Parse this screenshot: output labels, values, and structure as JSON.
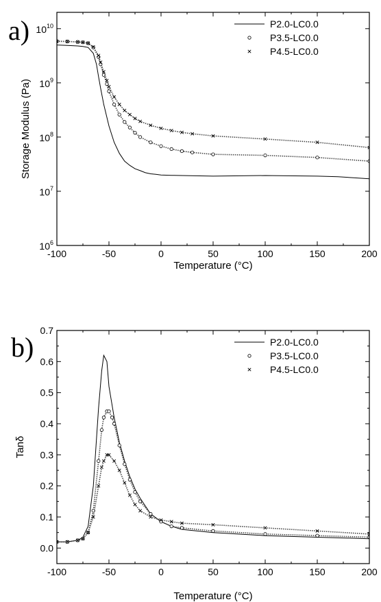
{
  "chart_data": [
    {
      "type": "line",
      "panel_label": "a)",
      "xlabel": "Temperature (°C)",
      "ylabel": "Storage Modulus (Pa)",
      "xlim": [
        -100,
        200
      ],
      "ylim": [
        1000000,
        20000000000
      ],
      "yscale": "log",
      "x_ticks": [
        -100,
        -50,
        0,
        50,
        100,
        150,
        200
      ],
      "x_tick_labels": [
        "-100",
        "-50",
        "0",
        "50",
        "100",
        "150",
        "200"
      ],
      "y_ticks": [
        {
          "value": 1000000,
          "base": "10",
          "exp": "6"
        },
        {
          "value": 10000000,
          "base": "10",
          "exp": "7"
        },
        {
          "value": 100000000,
          "base": "10",
          "exp": "8"
        },
        {
          "value": 1000000000,
          "base": "10",
          "exp": "9"
        },
        {
          "value": 10000000000,
          "base": "10",
          "exp": "10"
        }
      ],
      "legend_position": "top-right",
      "series": [
        {
          "name": "P2.0-LC0.0",
          "marker": "line",
          "x": [
            -100,
            -90,
            -80,
            -75,
            -70,
            -65,
            -62,
            -60,
            -58,
            -55,
            -52,
            -50,
            -45,
            -40,
            -35,
            -30,
            -25,
            -20,
            -15,
            -10,
            -5,
            0,
            10,
            20,
            50,
            100,
            150,
            170,
            200
          ],
          "y": [
            5000000000,
            4900000000,
            4800000000,
            4700000000,
            4500000000,
            3500000000,
            2200000000,
            1300000000,
            800000000,
            400000000,
            230000000,
            160000000,
            80000000,
            50000000,
            36000000,
            30000000,
            26000000,
            24000000,
            22000000,
            21000000,
            20500000,
            20000000,
            19700000,
            19500000,
            19000000,
            19500000,
            19000000,
            18500000,
            17000000
          ]
        },
        {
          "name": "P3.5-LC0.0",
          "marker": "circle",
          "x": [
            -100,
            -90,
            -80,
            -75,
            -70,
            -65,
            -60,
            -58,
            -55,
            -52,
            -50,
            -45,
            -40,
            -35,
            -30,
            -25,
            -20,
            -10,
            0,
            10,
            20,
            30,
            50,
            100,
            150,
            200
          ],
          "y": [
            5900000000,
            5800000000,
            5700000000,
            5600000000,
            5400000000,
            4500000000,
            3000000000,
            2200000000,
            1400000000,
            950000000,
            700000000,
            400000000,
            260000000,
            190000000,
            150000000,
            120000000,
            100000000,
            80000000,
            68000000,
            60000000,
            55000000,
            52000000,
            48000000,
            46000000,
            42000000,
            36000000
          ]
        },
        {
          "name": "P4.5-LC0.0",
          "marker": "x",
          "x": [
            -100,
            -90,
            -80,
            -75,
            -70,
            -65,
            -60,
            -58,
            -55,
            -52,
            -50,
            -45,
            -40,
            -35,
            -30,
            -25,
            -20,
            -10,
            0,
            10,
            20,
            30,
            50,
            100,
            150,
            200
          ],
          "y": [
            5800000000,
            5800000000,
            5700000000,
            5600000000,
            5400000000,
            4600000000,
            3200000000,
            2400000000,
            1600000000,
            1100000000,
            850000000,
            550000000,
            400000000,
            310000000,
            260000000,
            220000000,
            195000000,
            165000000,
            145000000,
            132000000,
            122000000,
            115000000,
            105000000,
            92000000,
            80000000,
            64000000
          ]
        }
      ]
    },
    {
      "type": "line",
      "panel_label": "b)",
      "xlabel": "Temperature (°C)",
      "ylabel": "Tanδ",
      "xlim": [
        -100,
        200
      ],
      "ylim": [
        -0.05,
        0.7
      ],
      "yscale": "linear",
      "x_ticks": [
        -100,
        -50,
        0,
        50,
        100,
        150,
        200
      ],
      "x_tick_labels": [
        "-100",
        "-50",
        "0",
        "50",
        "100",
        "150",
        "200"
      ],
      "y_ticks": [
        0.0,
        0.1,
        0.2,
        0.3,
        0.4,
        0.5,
        0.6,
        0.7
      ],
      "y_tick_labels": [
        "0.0",
        "0.1",
        "0.2",
        "0.3",
        "0.4",
        "0.5",
        "0.6",
        "0.7"
      ],
      "legend_position": "top-right",
      "series": [
        {
          "name": "P2.0-LC0.0",
          "marker": "line",
          "x": [
            -100,
            -90,
            -80,
            -75,
            -70,
            -65,
            -60,
            -57,
            -55,
            -52,
            -50,
            -45,
            -40,
            -35,
            -30,
            -25,
            -20,
            -10,
            0,
            10,
            20,
            50,
            100,
            150,
            200
          ],
          "y": [
            0.02,
            0.02,
            0.025,
            0.035,
            0.07,
            0.2,
            0.45,
            0.57,
            0.62,
            0.6,
            0.52,
            0.42,
            0.34,
            0.28,
            0.23,
            0.19,
            0.16,
            0.11,
            0.085,
            0.07,
            0.06,
            0.05,
            0.04,
            0.035,
            0.03
          ]
        },
        {
          "name": "P3.5-LC0.0",
          "marker": "circle",
          "x": [
            -100,
            -90,
            -80,
            -75,
            -70,
            -65,
            -60,
            -57,
            -55,
            -52,
            -50,
            -47,
            -45,
            -40,
            -35,
            -30,
            -25,
            -20,
            -10,
            0,
            10,
            20,
            50,
            100,
            150,
            200
          ],
          "y": [
            0.02,
            0.02,
            0.025,
            0.03,
            0.05,
            0.12,
            0.28,
            0.38,
            0.42,
            0.44,
            0.44,
            0.42,
            0.4,
            0.33,
            0.27,
            0.22,
            0.18,
            0.15,
            0.11,
            0.085,
            0.07,
            0.065,
            0.055,
            0.045,
            0.04,
            0.035
          ]
        },
        {
          "name": "P4.5-LC0.0",
          "marker": "x",
          "x": [
            -100,
            -90,
            -80,
            -75,
            -70,
            -65,
            -60,
            -57,
            -55,
            -52,
            -50,
            -45,
            -40,
            -35,
            -30,
            -25,
            -20,
            -10,
            0,
            10,
            20,
            50,
            100,
            150,
            200
          ],
          "y": [
            0.02,
            0.02,
            0.025,
            0.03,
            0.05,
            0.1,
            0.2,
            0.26,
            0.28,
            0.3,
            0.3,
            0.28,
            0.25,
            0.21,
            0.17,
            0.14,
            0.12,
            0.1,
            0.09,
            0.085,
            0.08,
            0.075,
            0.065,
            0.055,
            0.045
          ]
        }
      ]
    }
  ]
}
